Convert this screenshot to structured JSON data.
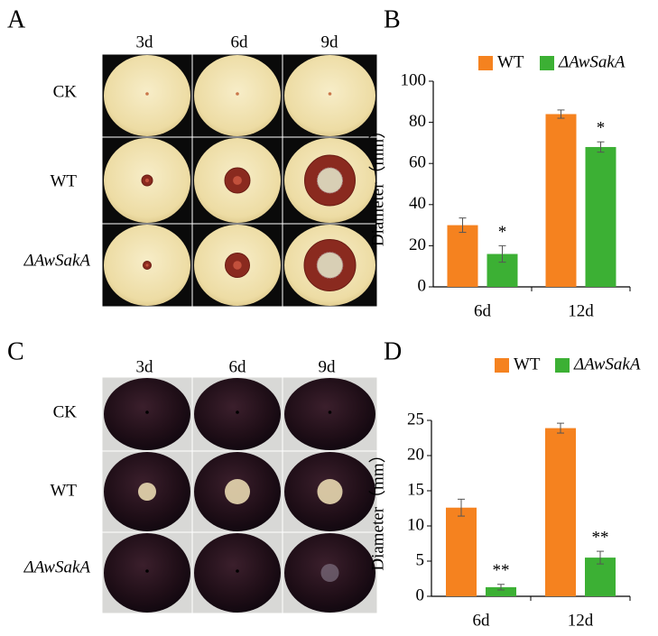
{
  "figure": {
    "panel_labels": [
      "A",
      "B",
      "C",
      "D"
    ],
    "photo_panels": [
      {
        "columns": [
          "3d",
          "6d",
          "9d"
        ],
        "rows": [
          "CK",
          "WT",
          "ΔAwSakA"
        ]
      },
      {
        "columns": [
          "3d",
          "6d",
          "9d"
        ],
        "rows": [
          "CK",
          "WT",
          "ΔAwSakA"
        ]
      }
    ]
  },
  "chart_data": [
    {
      "type": "bar",
      "ylabel": "Diameter（mm）",
      "categories": [
        "6d",
        "12d"
      ],
      "ylim": [
        0,
        100
      ],
      "yticks": [
        0,
        20,
        40,
        60,
        80,
        100
      ],
      "series": [
        {
          "name": "WT",
          "color": "#f5821f",
          "values": [
            30,
            84
          ],
          "errors": [
            3.5,
            2
          ]
        },
        {
          "name": "ΔAwSakA",
          "color": "#3cb034",
          "values": [
            16,
            68
          ],
          "errors": [
            4,
            2.5
          ],
          "significance": [
            "*",
            "*"
          ]
        }
      ]
    },
    {
      "type": "bar",
      "ylabel": "Diameter（mm）",
      "categories": [
        "6d",
        "12d"
      ],
      "ylim": [
        0,
        25
      ],
      "yticks": [
        0,
        5,
        10,
        15,
        20,
        25
      ],
      "series": [
        {
          "name": "WT",
          "color": "#f5821f",
          "values": [
            12.6,
            23.9
          ],
          "errors": [
            1.2,
            0.7
          ]
        },
        {
          "name": "ΔAwSakA",
          "color": "#3cb034",
          "values": [
            1.3,
            5.5
          ],
          "errors": [
            0.4,
            0.9
          ],
          "significance": [
            "**",
            "**"
          ]
        }
      ]
    }
  ]
}
